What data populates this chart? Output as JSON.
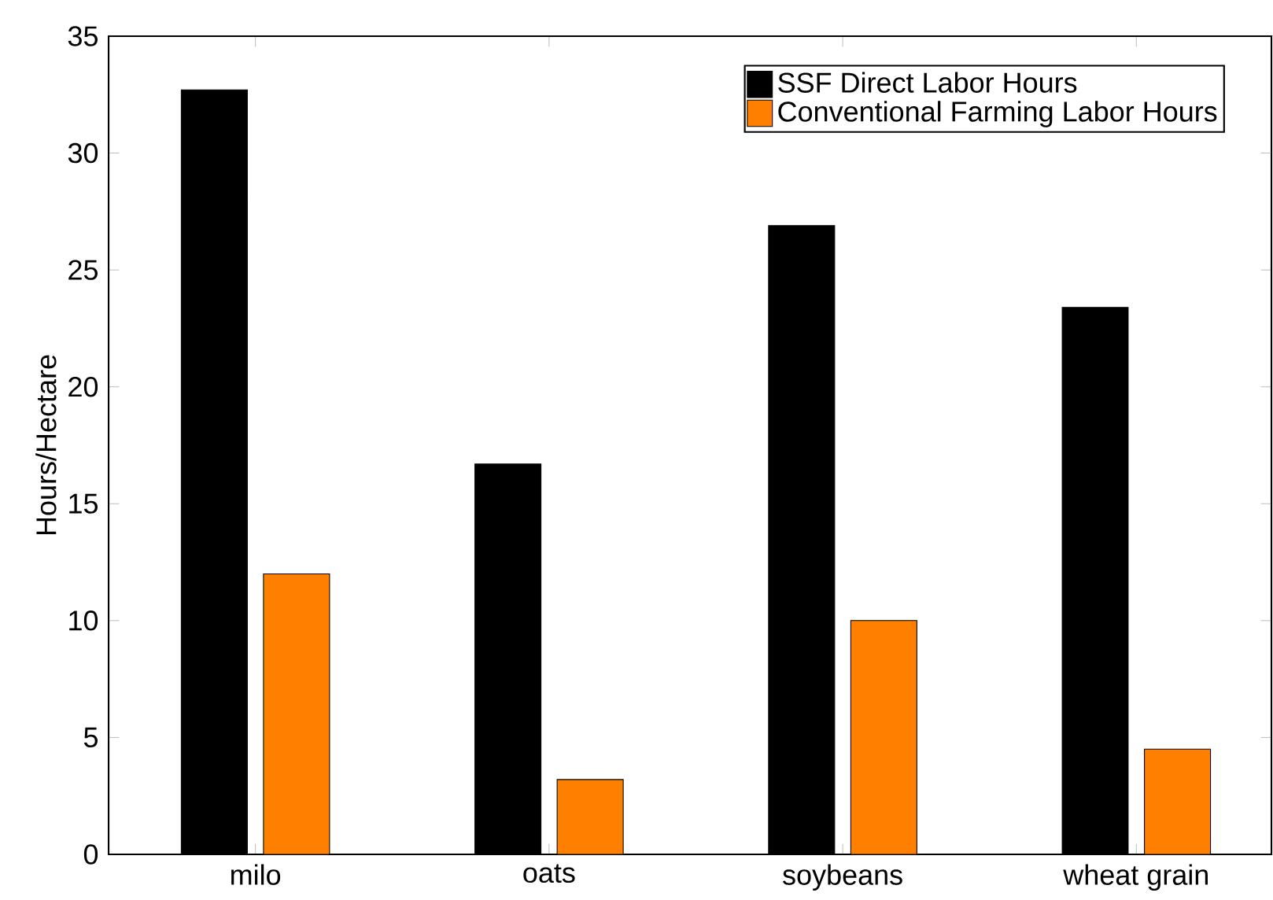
{
  "chart_data": {
    "type": "bar",
    "ylabel": "Hours/Hectare",
    "categories": [
      "milo",
      "oats",
      "soybeans",
      "wheat grain"
    ],
    "series": [
      {
        "name": "SSF Direct Labor Hours",
        "color": "#000000",
        "values": [
          32.7,
          16.7,
          26.9,
          23.4
        ]
      },
      {
        "name": "Conventional Farming Labor Hours",
        "color": "#ff8000",
        "values": [
          12.0,
          3.2,
          10.0,
          4.5
        ]
      }
    ],
    "ylim": [
      0,
      35
    ],
    "yticks": [
      0,
      5,
      10,
      15,
      20,
      25,
      30,
      35
    ],
    "legend": "top right",
    "grid": false
  }
}
